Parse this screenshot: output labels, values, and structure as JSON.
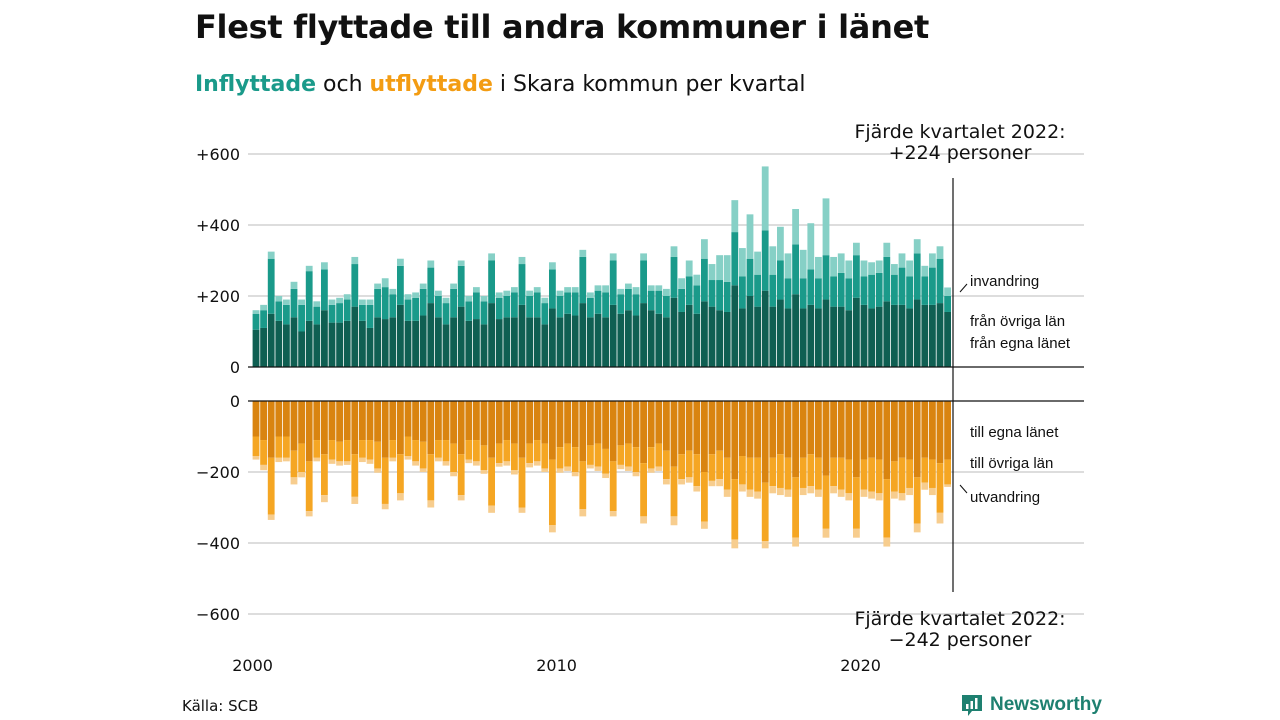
{
  "title": "Flest flyttade till andra kommuner i länet",
  "subtitle": {
    "in": "Inflyttade",
    "mid": " och ",
    "out": "utflyttade",
    "rest": " i Skara kommun per kvartal"
  },
  "source": "Källa: SCB",
  "brand": "Newsworthy",
  "colors": {
    "in_egna": "#0f5f52",
    "in_ovriga": "#1a9a8a",
    "in_invandring": "#86d0c6",
    "out_egna": "#d98410",
    "out_ovriga": "#f5a623",
    "out_utvandring": "#f7cd8e",
    "grid": "#dddddd",
    "axis": "#111111"
  },
  "chart_data": {
    "type": "bar",
    "stacked": true,
    "x": {
      "start_year": 2000,
      "quarters": 92,
      "tick_labels": [
        "2000",
        "2010",
        "2020"
      ]
    },
    "y_top": {
      "ylim": [
        0,
        650
      ],
      "ticks": [
        0,
        200,
        400,
        600
      ],
      "tick_labels": [
        "0",
        "+200",
        "+400",
        "+600"
      ]
    },
    "y_bottom": {
      "ylim": [
        -650,
        0
      ],
      "ticks": [
        0,
        -200,
        -400,
        -600
      ],
      "tick_labels": [
        "0",
        "−200",
        "−400",
        "−600"
      ]
    },
    "series_in": [
      {
        "name": "från egna länet",
        "color_key": "in_egna",
        "values": [
          105,
          110,
          150,
          130,
          120,
          140,
          100,
          130,
          120,
          160,
          125,
          125,
          130,
          170,
          130,
          110,
          140,
          135,
          140,
          175,
          130,
          130,
          145,
          180,
          140,
          120,
          140,
          170,
          130,
          135,
          120,
          180,
          135,
          140,
          140,
          175,
          140,
          140,
          120,
          165,
          140,
          150,
          145,
          180,
          140,
          150,
          140,
          175,
          150,
          160,
          145,
          180,
          160,
          150,
          140,
          195,
          155,
          175,
          150,
          185,
          170,
          160,
          155,
          230,
          165,
          200,
          170,
          215,
          170,
          190,
          165,
          205,
          165,
          175,
          165,
          190,
          170,
          170,
          160,
          195,
          175,
          165,
          170,
          185,
          175,
          175,
          165,
          190,
          175,
          175,
          180,
          155
        ]
      },
      {
        "name": "från övriga län",
        "color_key": "in_ovriga",
        "values": [
          45,
          50,
          155,
          55,
          55,
          80,
          75,
          140,
          50,
          115,
          50,
          55,
          60,
          120,
          45,
          65,
          80,
          90,
          65,
          110,
          60,
          65,
          75,
          100,
          60,
          60,
          80,
          115,
          55,
          75,
          65,
          120,
          60,
          60,
          70,
          115,
          60,
          70,
          60,
          110,
          60,
          60,
          65,
          130,
          55,
          65,
          70,
          125,
          55,
          60,
          60,
          120,
          55,
          65,
          60,
          115,
          65,
          80,
          80,
          120,
          75,
          85,
          85,
          150,
          90,
          105,
          90,
          170,
          90,
          110,
          85,
          140,
          85,
          100,
          85,
          125,
          85,
          95,
          90,
          120,
          80,
          95,
          95,
          125,
          85,
          105,
          90,
          130,
          80,
          105,
          125,
          45
        ]
      },
      {
        "name": "invandring",
        "color_key": "in_invandring",
        "values": [
          10,
          15,
          20,
          15,
          15,
          20,
          15,
          15,
          15,
          20,
          15,
          15,
          15,
          20,
          15,
          15,
          15,
          25,
          15,
          20,
          15,
          15,
          15,
          20,
          15,
          15,
          15,
          15,
          15,
          15,
          15,
          20,
          15,
          15,
          15,
          20,
          15,
          15,
          15,
          20,
          15,
          15,
          15,
          20,
          15,
          15,
          20,
          20,
          15,
          15,
          20,
          20,
          15,
          15,
          20,
          30,
          30,
          45,
          30,
          55,
          45,
          70,
          75,
          90,
          80,
          125,
          65,
          180,
          80,
          95,
          70,
          100,
          80,
          130,
          60,
          160,
          55,
          55,
          50,
          35,
          45,
          35,
          35,
          40,
          30,
          40,
          45,
          40,
          30,
          40,
          35,
          24
        ]
      }
    ],
    "series_out": [
      {
        "name": "till egna länet",
        "color_key": "out_egna",
        "values": [
          -100,
          -110,
          -160,
          -100,
          -100,
          -140,
          -120,
          -170,
          -110,
          -150,
          -110,
          -115,
          -110,
          -150,
          -110,
          -110,
          -115,
          -160,
          -110,
          -150,
          -100,
          -110,
          -115,
          -150,
          -110,
          -110,
          -120,
          -150,
          -110,
          -110,
          -125,
          -160,
          -120,
          -110,
          -120,
          -160,
          -120,
          -110,
          -120,
          -165,
          -130,
          -120,
          -130,
          -170,
          -125,
          -120,
          -135,
          -170,
          -125,
          -120,
          -130,
          -175,
          -130,
          -120,
          -140,
          -185,
          -150,
          -140,
          -150,
          -200,
          -150,
          -140,
          -160,
          -220,
          -155,
          -160,
          -160,
          -230,
          -160,
          -150,
          -160,
          -215,
          -160,
          -150,
          -160,
          -210,
          -160,
          -160,
          -165,
          -215,
          -165,
          -160,
          -165,
          -220,
          -170,
          -160,
          -165,
          -215,
          -160,
          -165,
          -175,
          -165
        ]
      },
      {
        "name": "till övriga län",
        "color_key": "out_ovriga",
        "values": [
          -55,
          -70,
          -160,
          -60,
          -60,
          -75,
          -80,
          -140,
          -50,
          -115,
          -55,
          -55,
          -60,
          -120,
          -50,
          -55,
          -75,
          -130,
          -50,
          -110,
          -55,
          -60,
          -75,
          -130,
          -50,
          -60,
          -80,
          -115,
          -55,
          -60,
          -70,
          -135,
          -55,
          -60,
          -75,
          -140,
          -55,
          -60,
          -70,
          -185,
          -60,
          -65,
          -70,
          -135,
          -55,
          -65,
          -70,
          -140,
          -55,
          -65,
          -70,
          -150,
          -60,
          -65,
          -80,
          -140,
          -70,
          -75,
          -90,
          -140,
          -75,
          -80,
          -90,
          -170,
          -80,
          -90,
          -95,
          -165,
          -80,
          -95,
          -90,
          -170,
          -85,
          -90,
          -90,
          -150,
          -80,
          -90,
          -95,
          -145,
          -85,
          -95,
          -95,
          -165,
          -85,
          -100,
          -80,
          -130,
          -70,
          -80,
          -140,
          -70
        ]
      },
      {
        "name": "utvandring",
        "color_key": "out_utvandring",
        "values": [
          -10,
          -15,
          -15,
          -12,
          -10,
          -20,
          -15,
          -15,
          -10,
          -20,
          -12,
          -12,
          -10,
          -20,
          -12,
          -12,
          -12,
          -15,
          -10,
          -20,
          -10,
          -12,
          -10,
          -20,
          -10,
          -12,
          -12,
          -15,
          -10,
          -12,
          -10,
          -20,
          -10,
          -12,
          -12,
          -15,
          -12,
          -12,
          -10,
          -20,
          -12,
          -12,
          -12,
          -20,
          -10,
          -12,
          -12,
          -15,
          -12,
          -12,
          -12,
          -20,
          -12,
          -12,
          -15,
          -25,
          -15,
          -15,
          -15,
          -20,
          -15,
          -20,
          -20,
          -25,
          -20,
          -20,
          -20,
          -20,
          -20,
          -20,
          -20,
          -25,
          -20,
          -20,
          -20,
          -25,
          -20,
          -20,
          -20,
          -25,
          -20,
          -20,
          -20,
          -25,
          -20,
          -20,
          -20,
          -25,
          -20,
          -20,
          -30,
          -7
        ]
      }
    ],
    "annotations": {
      "top": [
        "Fjärde kvartalet 2022:",
        "+224 personer"
      ],
      "bottom": [
        "Fjärde kvartalet 2022:",
        "−242 personer"
      ]
    }
  }
}
